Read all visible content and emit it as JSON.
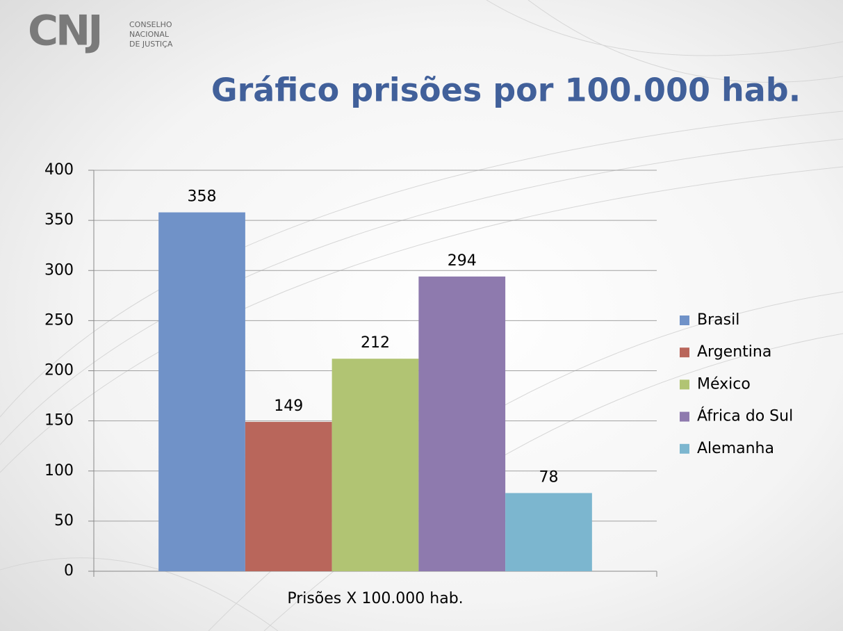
{
  "logo": {
    "mark": "CNJ",
    "lines": [
      "CONSELHO",
      "NACIONAL",
      "DE JUSTIÇA"
    ]
  },
  "chart_data": {
    "type": "bar",
    "title": "Gráfico prisões por 100.000 hab.",
    "categories": [
      "Prisões X 100.000 hab."
    ],
    "series": [
      {
        "name": "Brasil",
        "color": "#7092c8",
        "values": [
          358
        ]
      },
      {
        "name": "Argentina",
        "color": "#b9665b",
        "values": [
          149
        ]
      },
      {
        "name": "México",
        "color": "#b1c473",
        "values": [
          212
        ]
      },
      {
        "name": "África do Sul",
        "color": "#8e7aae",
        "values": [
          294
        ]
      },
      {
        "name": "Alemanha",
        "color": "#7cb6cf",
        "values": [
          78
        ]
      }
    ],
    "ylim": [
      0,
      400
    ],
    "yticks": [
      0,
      50,
      100,
      150,
      200,
      250,
      300,
      350,
      400
    ],
    "grid": true,
    "legend": "right"
  }
}
